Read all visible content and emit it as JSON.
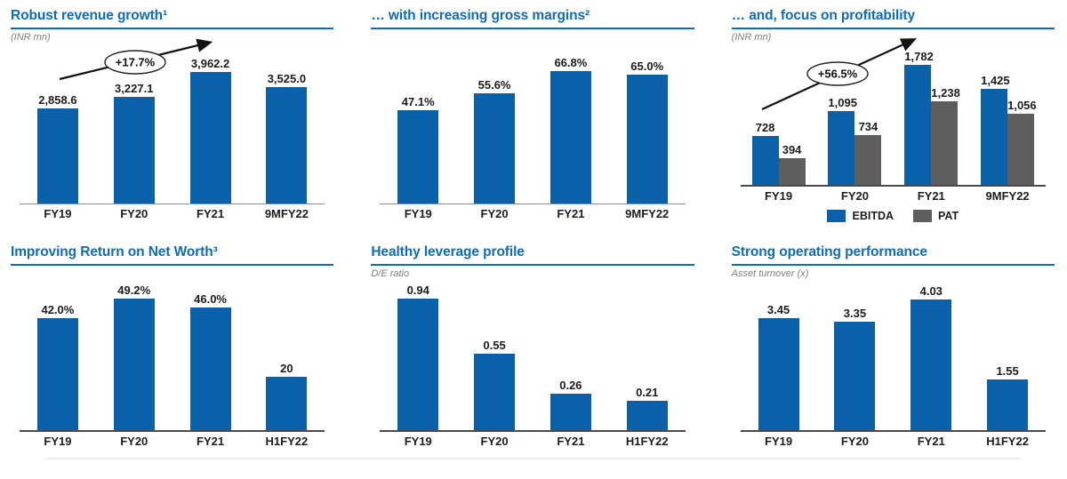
{
  "colors": {
    "title_blue": "#0e6cb8",
    "bar_blue": "#0a61a9",
    "pat_gray": "#5e5e5e"
  },
  "chart_data": [
    {
      "type": "bar",
      "title": "Robust revenue growth¹",
      "subtitle": "(INR mn)",
      "categories": [
        "FY19",
        "FY20",
        "FY21",
        "9MFY22"
      ],
      "values": [
        2858.6,
        3227.1,
        3962.2,
        3525.0
      ],
      "labels": [
        "2,858.6",
        "3,227.1",
        "3,962.2",
        "3,525.0"
      ],
      "annotation": "+17.7%",
      "ylim": [
        0,
        4800
      ],
      "grid": false,
      "bar_color": "#0a61a9"
    },
    {
      "type": "bar",
      "title": "… with increasing gross margins²",
      "subtitle": "",
      "categories": [
        "FY19",
        "FY20",
        "FY21",
        "9MFY22"
      ],
      "values": [
        47.1,
        55.6,
        66.8,
        65.0
      ],
      "labels": [
        "47.1%",
        "55.6%",
        "66.8%",
        "65.0%"
      ],
      "ylim": [
        0,
        80
      ],
      "grid": false,
      "bar_color": "#0a61a9"
    },
    {
      "type": "bar",
      "title": "… and, focus on profitability",
      "subtitle": "(INR mn)",
      "categories": [
        "FY19",
        "FY20",
        "FY21",
        "9MFY22"
      ],
      "series": [
        {
          "name": "EBITDA",
          "color": "#0a61a9",
          "values": [
            728,
            1095,
            1782,
            1425
          ],
          "labels": [
            "728",
            "1,095",
            "1,782",
            "1,425"
          ]
        },
        {
          "name": "PAT",
          "color": "#5e5e5e",
          "values": [
            394,
            734,
            1238,
            1056
          ],
          "labels": [
            "394",
            "734",
            "1,238",
            "1,056"
          ]
        }
      ],
      "legend": [
        "EBITDA",
        "PAT"
      ],
      "legend_position": "bottom",
      "annotation": "+56.5%",
      "ylim": [
        0,
        2080
      ],
      "grid": false
    },
    {
      "type": "bar",
      "title": "Improving Return on Net Worth³",
      "subtitle": "",
      "categories": [
        "FY19",
        "FY20",
        "FY21",
        "H1FY22"
      ],
      "values": [
        42.0,
        49.2,
        46.0,
        20
      ],
      "labels": [
        "42.0%",
        "49.2%",
        "46.0%",
        "20"
      ],
      "ylim": [
        0,
        56
      ],
      "grid": false,
      "bar_color": "#0a61a9"
    },
    {
      "type": "bar",
      "title": "Healthy leverage profile",
      "subtitle": "D/E ratio",
      "categories": [
        "FY19",
        "FY20",
        "FY21",
        "H1FY22"
      ],
      "values": [
        0.94,
        0.55,
        0.26,
        0.21
      ],
      "labels": [
        "0.94",
        "0.55",
        "0.26",
        "0.21"
      ],
      "ylim": [
        0,
        1.07
      ],
      "grid": false,
      "bar_color": "#0a61a9"
    },
    {
      "type": "bar",
      "title": "Strong operating performance",
      "subtitle": "Asset turnover (x)",
      "categories": [
        "FY19",
        "FY20",
        "FY21",
        "H1FY22"
      ],
      "values": [
        3.45,
        3.35,
        4.03,
        1.55
      ],
      "labels": [
        "3.45",
        "3.35",
        "4.03",
        "1.55"
      ],
      "ylim": [
        0,
        4.6
      ],
      "grid": false,
      "bar_color": "#0a61a9"
    }
  ]
}
